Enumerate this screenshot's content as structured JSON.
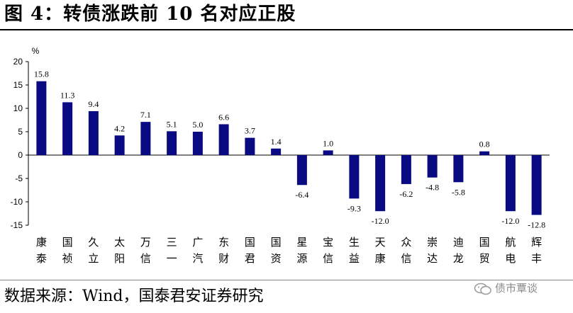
{
  "figure": {
    "title": "图 4：转债涨跌前 10 名对应正股",
    "source": "数据来源：Wind，国泰君安证券研究",
    "watermark": "债市覃谈"
  },
  "chart_data": {
    "type": "bar",
    "title": "",
    "xlabel": "",
    "ylabel": "%",
    "ylim": [
      -15,
      20
    ],
    "yticks": [
      20,
      15,
      10,
      5,
      0,
      -5,
      -10,
      -15
    ],
    "grid": false,
    "bar_color": "#0a0a82",
    "categories": [
      [
        "康",
        "泰"
      ],
      [
        "国",
        "祯"
      ],
      [
        "久",
        "立"
      ],
      [
        "太",
        "阳"
      ],
      [
        "万",
        "信"
      ],
      [
        "三",
        "一"
      ],
      [
        "广",
        "汽"
      ],
      [
        "东",
        "财"
      ],
      [
        "国",
        "君"
      ],
      [
        "国",
        "资"
      ],
      [
        "星",
        "源"
      ],
      [
        "宝",
        "信"
      ],
      [
        "生",
        "益"
      ],
      [
        "天",
        "康"
      ],
      [
        "众",
        "信"
      ],
      [
        "崇",
        "达"
      ],
      [
        "迪",
        "龙"
      ],
      [
        "国",
        "贸"
      ],
      [
        "航",
        "电"
      ],
      [
        "辉",
        "丰"
      ]
    ],
    "values": [
      15.8,
      11.3,
      9.4,
      4.2,
      7.1,
      5.1,
      5.0,
      6.6,
      3.7,
      1.4,
      -6.4,
      1.0,
      -9.3,
      -12.0,
      -6.2,
      -4.8,
      -5.8,
      0.8,
      -12.0,
      -12.8
    ],
    "value_labels": [
      "15.8",
      "11.3",
      "9.4",
      "4.2",
      "7.1",
      "5.1",
      "5.0",
      "6.6",
      "3.7",
      "1.4",
      "-6.4",
      "1.0",
      "-9.3",
      "-12.0",
      "-6.2",
      "-4.8",
      "-5.8",
      "0.8",
      "-12.0",
      "-12.8"
    ]
  }
}
